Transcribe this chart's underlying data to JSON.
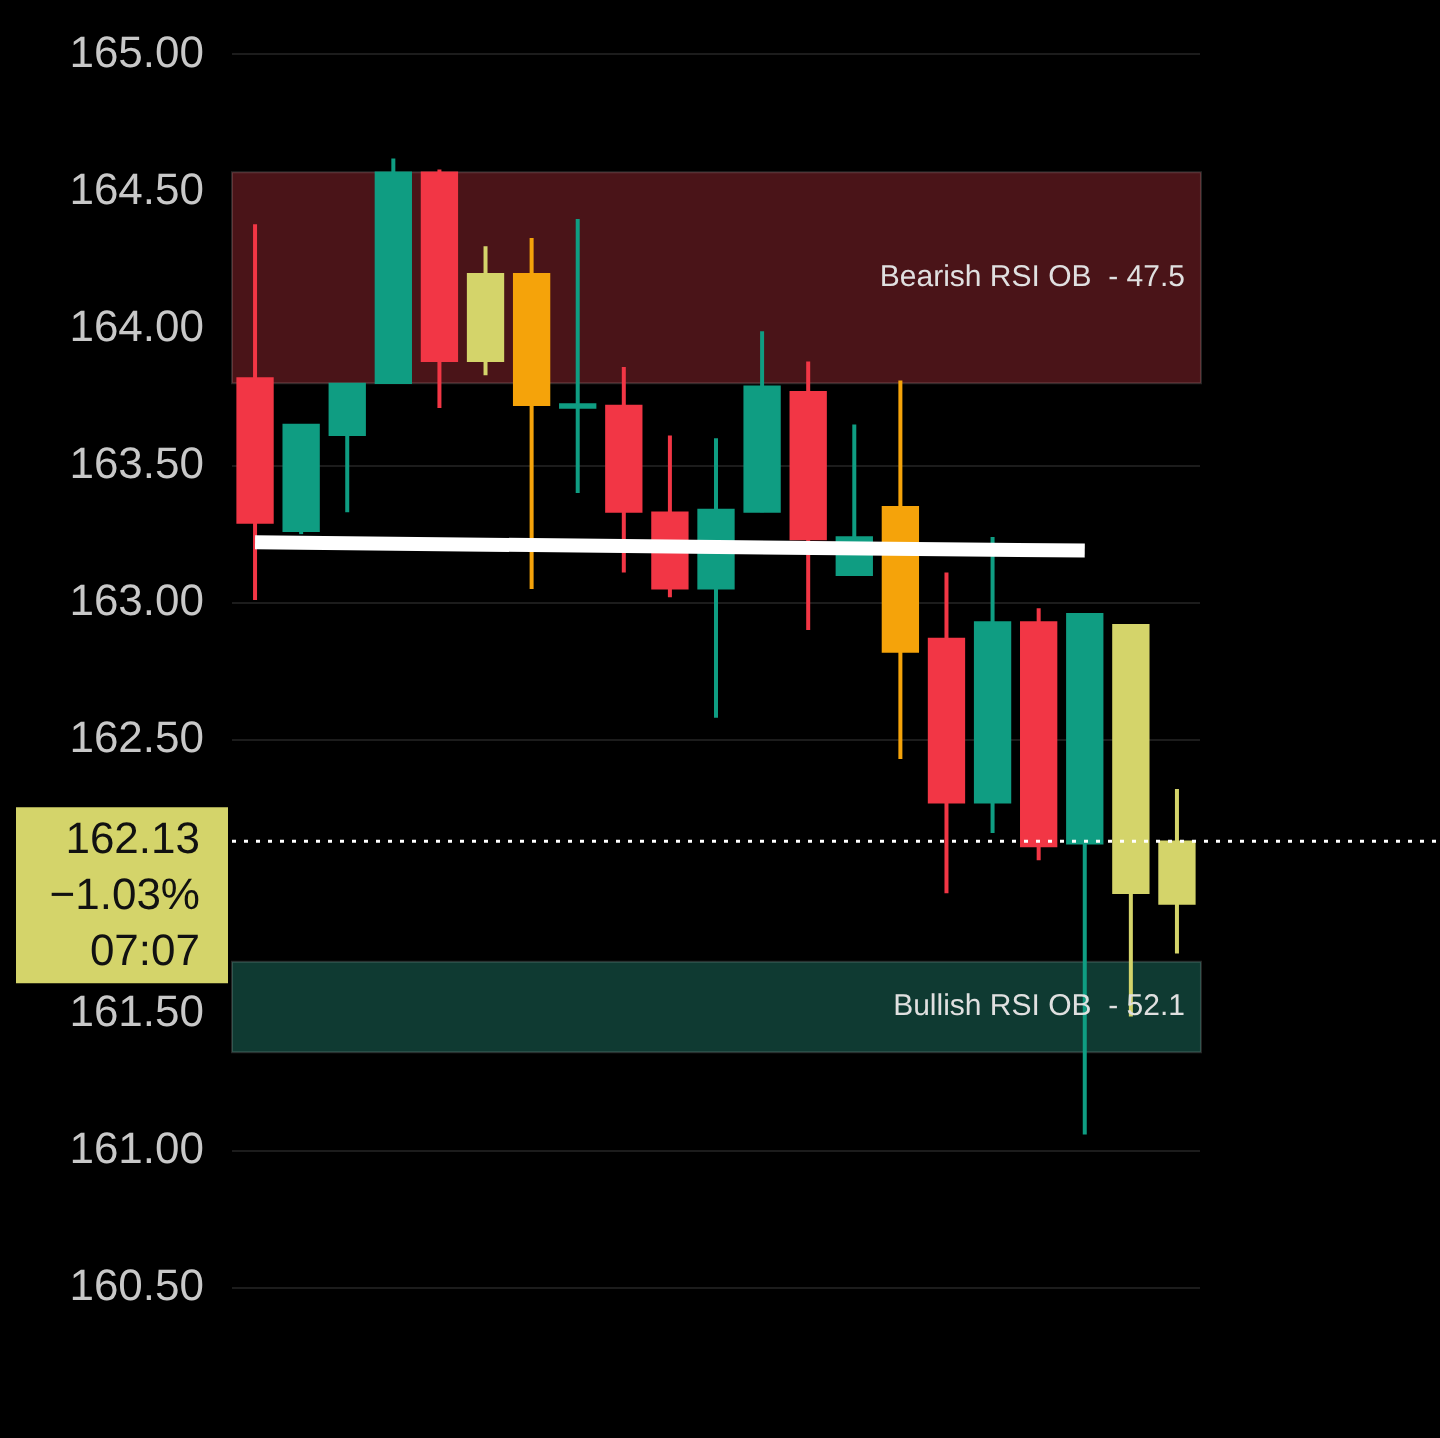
{
  "chart_data": {
    "type": "candlestick",
    "categories": [
      null,
      null,
      null,
      null,
      null,
      null,
      null,
      null,
      null,
      null,
      null,
      null,
      null,
      null,
      null,
      null,
      null,
      null,
      null,
      null,
      null
    ],
    "ohlc": [
      [
        163.82,
        164.38,
        163.01,
        163.29
      ],
      [
        163.26,
        163.65,
        163.25,
        163.65
      ],
      [
        163.61,
        163.8,
        163.33,
        163.8
      ],
      [
        163.8,
        164.62,
        163.8,
        164.57
      ],
      [
        164.57,
        164.58,
        163.71,
        163.88
      ],
      [
        163.88,
        164.3,
        163.83,
        164.2
      ],
      [
        164.2,
        164.33,
        163.05,
        163.72
      ],
      [
        163.71,
        164.4,
        163.4,
        163.72
      ],
      [
        163.72,
        163.86,
        163.11,
        163.33
      ],
      [
        163.33,
        163.61,
        163.02,
        163.05
      ],
      [
        163.05,
        163.6,
        162.58,
        163.34
      ],
      [
        163.33,
        163.99,
        163.33,
        163.79
      ],
      [
        163.77,
        163.88,
        162.9,
        163.23
      ],
      [
        163.1,
        163.65,
        163.1,
        163.24
      ],
      [
        163.35,
        163.81,
        162.43,
        162.82
      ],
      [
        162.87,
        163.11,
        161.94,
        162.27
      ],
      [
        162.27,
        163.24,
        162.16,
        162.93
      ],
      [
        162.93,
        162.98,
        162.06,
        162.11
      ],
      [
        162.12,
        162.96,
        161.06,
        162.96
      ],
      [
        162.92,
        162.92,
        161.49,
        161.94
      ],
      [
        161.9,
        162.32,
        161.72,
        162.13
      ]
    ],
    "colors": [
      "#f23645",
      "#0f9d82",
      "#0f9d82",
      "#0f9d82",
      "#f23645",
      "#d4d46a",
      "#f5a30a",
      "#0f9d82",
      "#f23645",
      "#f23645",
      "#0f9d82",
      "#0f9d82",
      "#f23645",
      "#0f9d82",
      "#f5a30a",
      "#f23645",
      "#0f9d82",
      "#f23645",
      "#0f9d82",
      "#d4d46a",
      "#d4d46a"
    ],
    "series": [
      {
        "type": "line",
        "color": "#ffffff",
        "values": [
          163.22,
          null,
          null,
          null,
          null,
          null,
          null,
          null,
          null,
          null,
          null,
          null,
          null,
          null,
          null,
          null,
          null,
          null,
          163.19,
          null,
          null
        ]
      }
    ],
    "ylim": [
      160.5,
      165
    ],
    "yticks": [
      {
        "value": 160.5,
        "label": "160.50"
      },
      {
        "value": 161,
        "label": "161.00"
      },
      {
        "value": 161.5,
        "label": "161.50"
      },
      {
        "value": 162.5,
        "label": "162.50"
      },
      {
        "value": 163,
        "label": "163.00"
      },
      {
        "value": 163.5,
        "label": "163.50"
      },
      {
        "value": 164,
        "label": "164.00"
      },
      {
        "value": 164.5,
        "label": "164.50"
      },
      {
        "value": 165,
        "label": "165.00"
      }
    ],
    "tick_labels": "y",
    "grid": "y",
    "bands": [
      {
        "axis": "y",
        "from": 163.8,
        "to": 164.57,
        "label": "Bearish RSI OB  - 47.5",
        "color": "#4a1418"
      },
      {
        "axis": "y",
        "from": 161.36,
        "to": 161.69,
        "label": "Bullish RSI OB  - 52.1",
        "color": "#0f3a32"
      }
    ],
    "ref_lines": [
      {
        "axis": "y",
        "value": 162.13,
        "label": "162.13",
        "color": "#ffffff",
        "line_style": "dotted"
      }
    ],
    "annotations": [
      "−1.03%",
      "07:07"
    ]
  }
}
